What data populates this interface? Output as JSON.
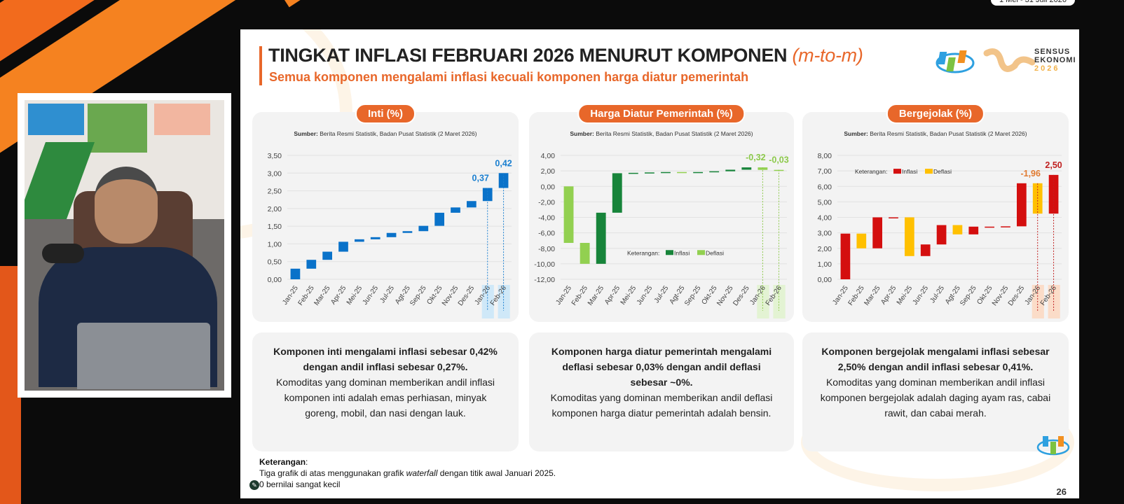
{
  "top_bar": {
    "date_range": "1 Mei - 31 Juli 2026"
  },
  "slide": {
    "title": "TINGKAT INFLASI FEBRUARI 2026 MENURUT KOMPONEN ",
    "title_suffix": "(m-to-m)",
    "subtitle": "Semua komponen mengalami inflasi kecuali komponen harga diatur pemerintah",
    "logo": {
      "line1": "SENSUS",
      "line2": "EKONOMI",
      "line3": "2026"
    },
    "source_label": "Sumber:",
    "source_text": " Berita Resmi Statistik, Badan Pusat Statistik (2 Maret 2026)",
    "legend_prefix": "Keterangan:",
    "legend_inflasi": "Inflasi",
    "legend_deflasi": "Deflasi",
    "panels": [
      {
        "title": "Inti (%)",
        "desc_bold": "Komponen inti mengalami inflasi sebesar 0,42% dengan andil inflasi sebesar 0,27%.",
        "desc": "Komoditas yang dominan memberikan andil inflasi komponen inti adalah emas perhiasan, minyak goreng, mobil, dan nasi dengan lauk."
      },
      {
        "title": "Harga Diatur Pemerintah (%)",
        "desc_bold": "Komponen harga diatur pemerintah mengalami deflasi sebesar 0,03% dengan andil deflasi sebesar ~0%.",
        "desc": "Komoditas yang dominan memberikan andil deflasi komponen harga diatur pemerintah adalah bensin."
      },
      {
        "title": "Bergejolak (%)",
        "desc_bold": "Komponen bergejolak mengalami inflasi sebesar 2,50% dengan andil inflasi sebesar 0,41%.",
        "desc": "Komoditas yang dominan memberikan andil inflasi komponen bergejolak adalah daging ayam ras, cabai rawit, dan cabai merah."
      }
    ],
    "notes": {
      "heading": "Keterangan",
      "line1a": "Tiga grafik di atas menggunakan grafik ",
      "line1b": "waterfall",
      "line1c": " dengan titik awal Januari 2025.",
      "line2": "0 bernilai sangat kecil"
    },
    "page_number": "26"
  },
  "chart_data": [
    {
      "type": "waterfall",
      "title": "Inti (%)",
      "categories": [
        "Jan-25",
        "Feb-25",
        "Mar-25",
        "Apr-25",
        "Mei-25",
        "Jun-25",
        "Jul-25",
        "Agt-25",
        "Sep-25",
        "Okt-25",
        "Nov-25",
        "Des-25",
        "Jan-26",
        "Feb-26"
      ],
      "values": [
        0.3,
        0.25,
        0.23,
        0.28,
        0.07,
        0.06,
        0.12,
        0.05,
        0.15,
        0.37,
        0.15,
        0.18,
        0.37,
        0.42
      ],
      "ylim": [
        0,
        3.5
      ],
      "ticks": [
        "0,00",
        "0,50",
        "1,00",
        "1,50",
        "2,00",
        "2,50",
        "3,00",
        "3,50"
      ],
      "labels": {
        "12": "0,37",
        "13": "0,42"
      },
      "color_up": "#0a72c9",
      "color_down": "#0a72c9",
      "label_color": "#1a7fd0",
      "highlight": "#cfe8f8",
      "legend": false
    },
    {
      "type": "waterfall",
      "title": "Harga Diatur Pemerintah (%)",
      "categories": [
        "Jan-25",
        "Feb-25",
        "Mar-25",
        "Apr-25",
        "Mei-25",
        "Jun-25",
        "Jul-25",
        "Agt-25",
        "Sep-25",
        "Okt-25",
        "Nov-25",
        "Des-25",
        "Jan-26",
        "Feb-26"
      ],
      "values": [
        -7.3,
        -2.7,
        6.6,
        5.1,
        0.05,
        0.05,
        0.05,
        -0.05,
        0.05,
        0.1,
        0.2,
        0.3,
        -0.32,
        -0.03
      ],
      "ylim": [
        -12,
        4
      ],
      "ticks": [
        "-12,00",
        "-10,00",
        "-8,00",
        "-6,00",
        "-4,00",
        "-2,00",
        "0,00",
        "2,00",
        "4,00"
      ],
      "labels": {
        "12": "-0,32",
        "13": "-0,03"
      },
      "color_up": "#17843a",
      "color_down": "#92d050",
      "label_color": "#8cc94a",
      "highlight": "#e3f3d3",
      "legend": "bottom-center"
    },
    {
      "type": "waterfall",
      "title": "Bergejolak (%)",
      "categories": [
        "Jan-25",
        "Feb-25",
        "Mar-25",
        "Apr-25",
        "Mei-25",
        "Jun-25",
        "Jul-25",
        "Agt-25",
        "Sep-25",
        "Okt-25",
        "Nov-25",
        "Des-25",
        "Jan-26",
        "Feb-26"
      ],
      "values": [
        2.95,
        -0.95,
        2.0,
        0.0,
        -2.5,
        0.75,
        1.25,
        -0.6,
        0.5,
        0.0,
        0.02,
        2.78,
        -1.96,
        2.5
      ],
      "ylim": [
        0,
        8
      ],
      "ticks": [
        "0,00",
        "1,00",
        "2,00",
        "3,00",
        "4,00",
        "5,00",
        "6,00",
        "7,00",
        "8,00"
      ],
      "labels": {
        "12": "-1,96",
        "13": "2,50"
      },
      "color_up": "#d40f0f",
      "color_down": "#ffc000",
      "label_color": "#c02020",
      "label_color_down": "#e07a30",
      "highlight": "#fbdcc8",
      "legend": "top-left"
    }
  ]
}
